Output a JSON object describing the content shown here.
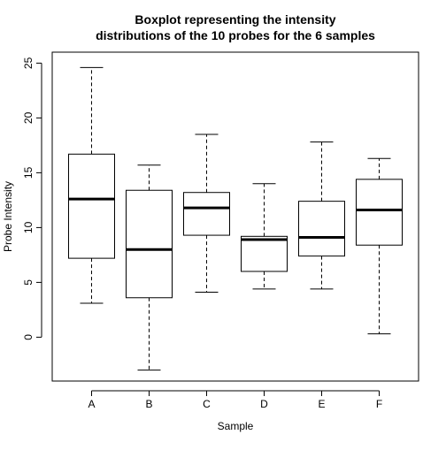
{
  "chart_data": {
    "type": "boxplot",
    "title_lines": [
      "Boxplot representing the intensity",
      "distributions of the 10 probes for the 6 samples"
    ],
    "xlabel": "Sample",
    "ylabel": "Probe Intensity",
    "categories": [
      "A",
      "B",
      "C",
      "D",
      "E",
      "F"
    ],
    "ylim": [
      -4,
      26
    ],
    "yticks": [
      0,
      5,
      10,
      15,
      20,
      25
    ],
    "grid": false,
    "boxes": [
      {
        "label": "A",
        "min": 3.1,
        "q1": 7.2,
        "median": 12.6,
        "q3": 16.7,
        "max": 24.6
      },
      {
        "label": "B",
        "min": -3.0,
        "q1": 3.6,
        "median": 8.0,
        "q3": 13.4,
        "max": 15.7
      },
      {
        "label": "C",
        "min": 4.1,
        "q1": 9.3,
        "median": 11.8,
        "q3": 13.2,
        "max": 18.5
      },
      {
        "label": "D",
        "min": 4.4,
        "q1": 6.0,
        "median": 8.9,
        "q3": 9.2,
        "max": 14.0
      },
      {
        "label": "E",
        "min": 4.4,
        "q1": 7.4,
        "median": 9.1,
        "q3": 12.4,
        "max": 17.8
      },
      {
        "label": "F",
        "min": 0.3,
        "q1": 8.4,
        "median": 11.6,
        "q3": 14.4,
        "max": 16.3
      }
    ]
  }
}
